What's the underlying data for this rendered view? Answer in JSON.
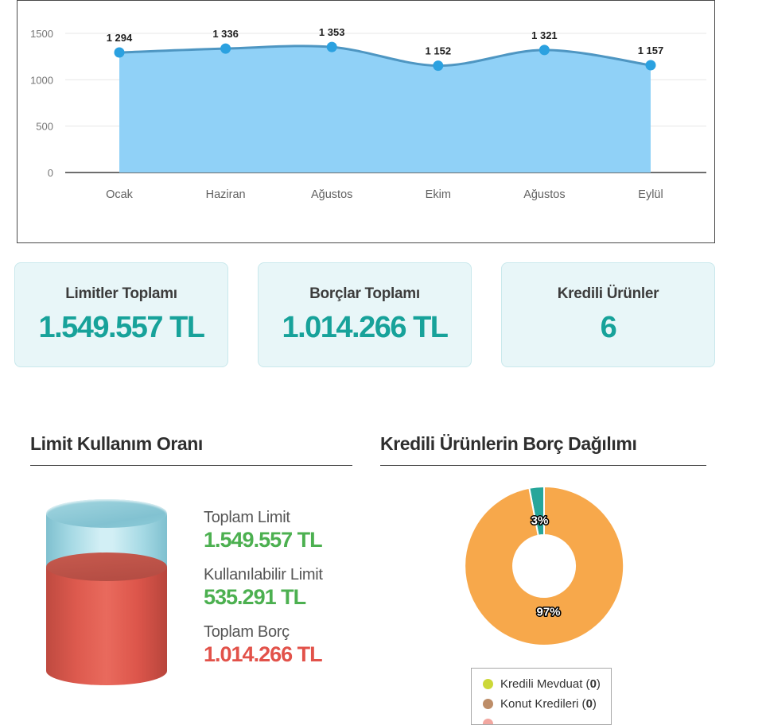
{
  "palette": {
    "card_value": "#17a29a",
    "green": "#4cb050",
    "red": "#e2524a"
  },
  "chart_data": [
    {
      "type": "area",
      "title": "",
      "categories": [
        "Ocak",
        "Haziran",
        "Ağustos",
        "Ekim",
        "Ağustos",
        "Eylül"
      ],
      "values": [
        1294,
        1336,
        1353,
        1152,
        1321,
        1157
      ],
      "value_labels": [
        "1 294",
        "1 336",
        "1 353",
        "1 152",
        "1 321",
        "1 157"
      ],
      "ylim": [
        0,
        1500
      ],
      "yticks": [
        0,
        500,
        1000,
        1500
      ],
      "grid": true,
      "legend_position": "none",
      "colors": {
        "fill": "#90d1f7",
        "line": "#4e96c2",
        "marker": "#2ba1e0",
        "grid": "#e7e7e7",
        "axis": "#6e6e6e",
        "tick_text": "#757575",
        "cat_text": "#616161",
        "point_label": "#1f1f1f"
      }
    },
    {
      "type": "donut",
      "title": "Kredili Ürünlerin Borç Dağılımı",
      "slices": [
        {
          "label": "3%",
          "value": 3,
          "color": "#26a69a"
        },
        {
          "label": "97%",
          "value": 97,
          "color": "#f7a84b"
        }
      ],
      "legend_position": "bottom",
      "legend": [
        {
          "name": "Kredili Mevduat",
          "count": "0",
          "color": "#ccd838"
        },
        {
          "name": "Konut Kredileri",
          "count": "0",
          "color": "#bd8d68"
        },
        {
          "name": "",
          "count": "",
          "color": "#f2a7a0"
        }
      ]
    }
  ],
  "summary_cards": [
    {
      "title": "Limitler Toplamı",
      "value": "1.549.557 TL"
    },
    {
      "title": "Borçlar Toplamı",
      "value": "1.014.266 TL"
    },
    {
      "title": "Kredili Ürünler",
      "value": "6"
    }
  ],
  "limit_section": {
    "title": "Limit Kullanım Oranı",
    "stats": [
      {
        "label": "Toplam Limit",
        "value": "1.549.557 TL",
        "value_color": "#4cb050"
      },
      {
        "label": "Kullanılabilir Limit",
        "value": "535.291 TL",
        "value_color": "#4cb050"
      },
      {
        "label": "Toplam Borç",
        "value": "1.014.266 TL",
        "value_color": "#e2524a"
      }
    ]
  },
  "distribution_section": {
    "title": "Kredili Ürünlerin Borç Dağılımı"
  }
}
